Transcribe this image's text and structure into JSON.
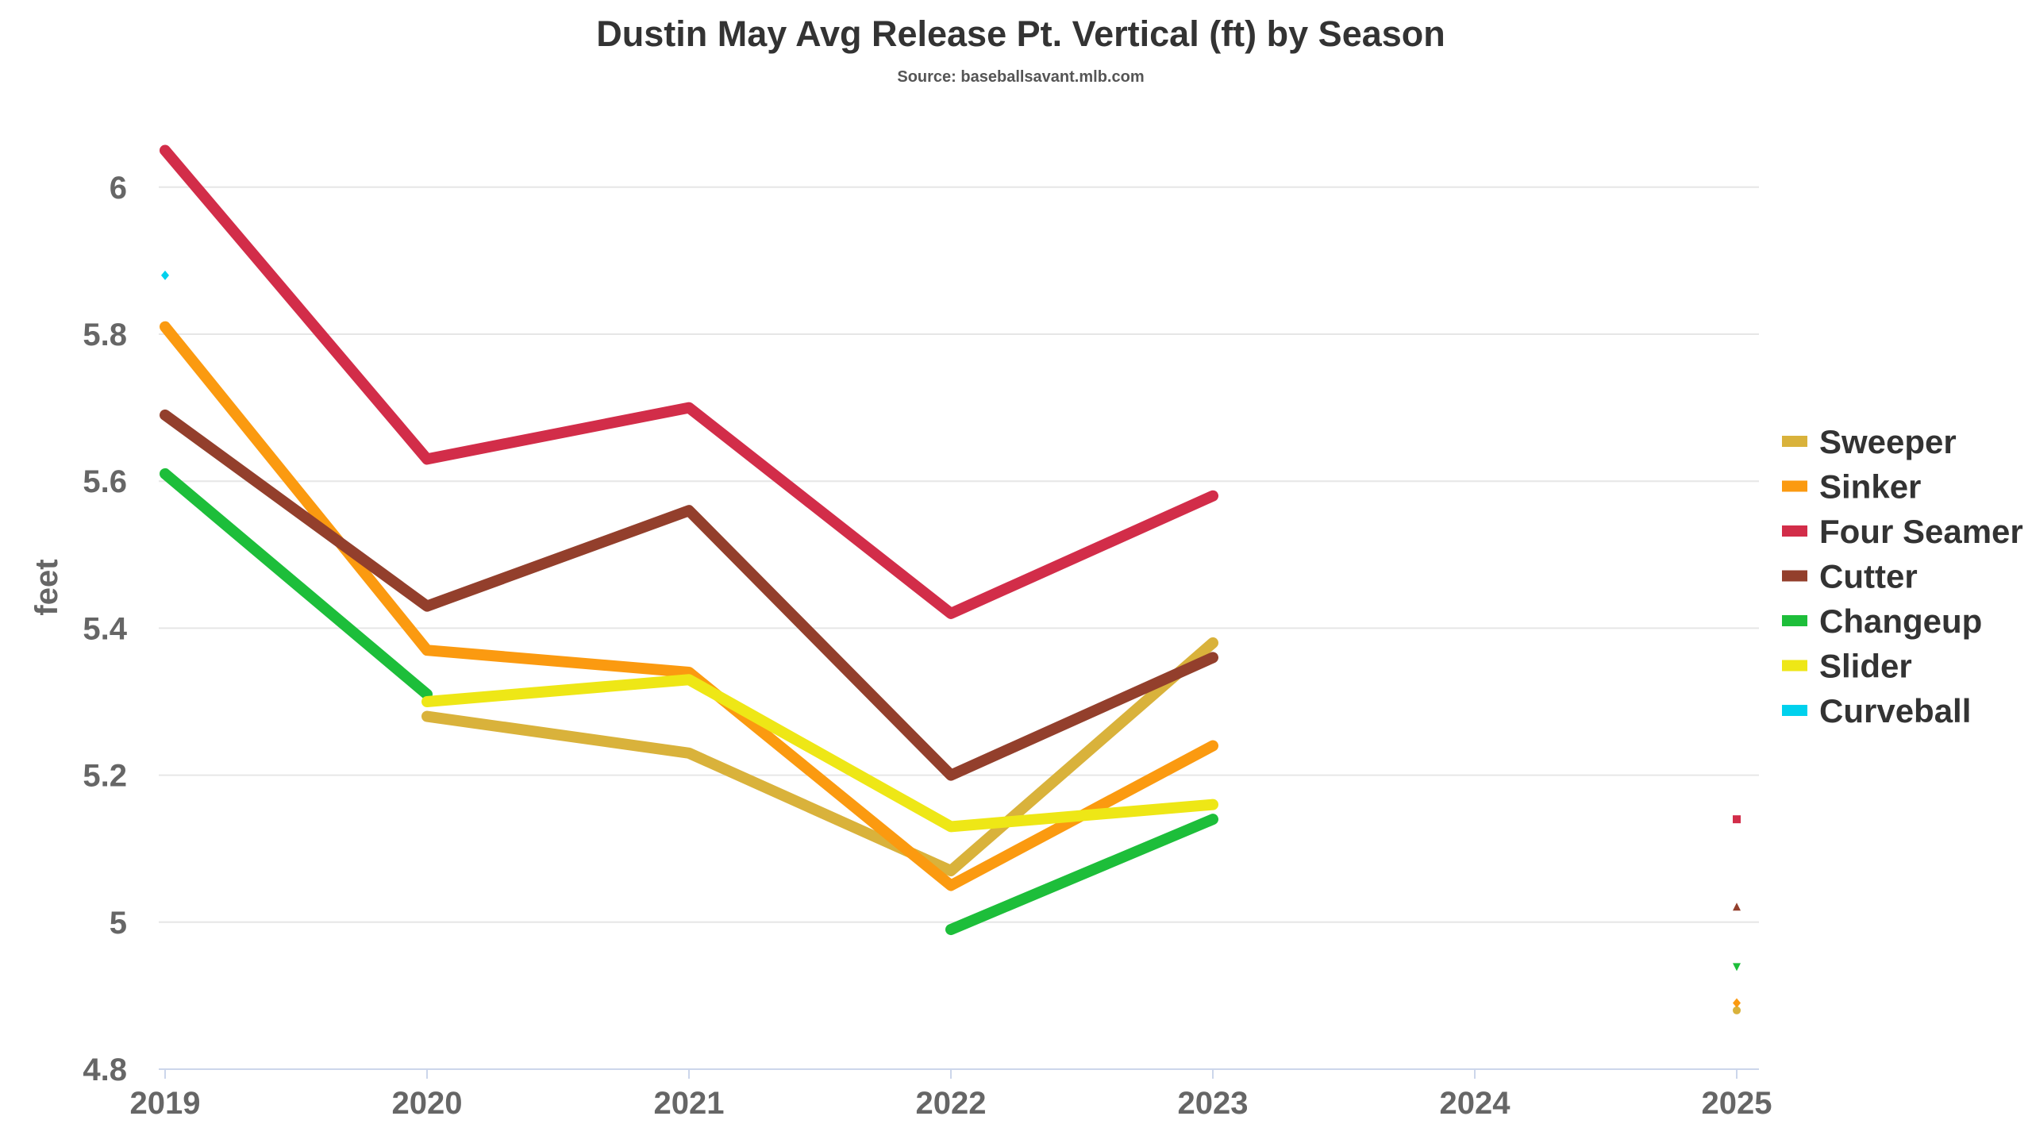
{
  "chart_data": {
    "type": "line",
    "title": "Dustin May Avg Release Pt. Vertical (ft) by Season",
    "subtitle": "Source: baseballsavant.mlb.com",
    "xlabel": "",
    "ylabel": "feet",
    "categories": [
      "2019",
      "2020",
      "2021",
      "2022",
      "2023",
      "2024",
      "2025"
    ],
    "y_ticks": [
      "4.8",
      "5",
      "5.2",
      "5.4",
      "5.6",
      "5.8",
      "6"
    ],
    "ylim": [
      4.8,
      6.1
    ],
    "grid": true,
    "legend_position": "right",
    "series": [
      {
        "name": "Sweeper",
        "color": "#d9b23b",
        "marker": "circle",
        "values": [
          null,
          5.28,
          5.23,
          5.07,
          5.38,
          null,
          4.88
        ]
      },
      {
        "name": "Sinker",
        "color": "#fb9a10",
        "marker": "diamond",
        "values": [
          5.81,
          5.37,
          5.34,
          5.05,
          5.24,
          null,
          4.89
        ]
      },
      {
        "name": "Four Seamer",
        "color": "#d22d49",
        "marker": "square",
        "values": [
          6.05,
          5.63,
          5.7,
          5.42,
          5.58,
          null,
          5.14
        ]
      },
      {
        "name": "Cutter",
        "color": "#933f2c",
        "marker": "triangle",
        "values": [
          5.69,
          5.43,
          5.56,
          5.2,
          5.36,
          null,
          5.02
        ]
      },
      {
        "name": "Changeup",
        "color": "#1dbe3a",
        "marker": "triangle-down",
        "values": [
          5.61,
          5.31,
          null,
          4.99,
          5.14,
          null,
          4.94
        ]
      },
      {
        "name": "Slider",
        "color": "#eee716",
        "marker": "circle",
        "values": [
          null,
          5.3,
          5.33,
          5.13,
          5.16,
          null,
          null
        ]
      },
      {
        "name": "Curveball",
        "color": "#00d1ed",
        "marker": "diamond",
        "values": [
          5.88,
          null,
          null,
          null,
          null,
          null,
          null
        ]
      }
    ]
  }
}
